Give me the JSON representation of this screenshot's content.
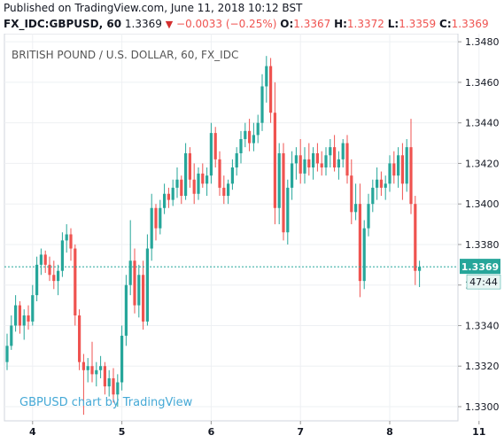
{
  "header": {
    "published": "Published on TradingView.com, June 11, 2018 10:12 BST",
    "symbol": "FX_IDC:GBPUSD, 60",
    "last": "1.3369",
    "change": "−0.0033 (−0.25%)",
    "open_label": "O:",
    "open": "1.3367",
    "high_label": "H:",
    "high": "1.3372",
    "low_label": "L:",
    "low": "1.3359",
    "close_label": "C:",
    "close": "1.3369"
  },
  "watermark": "GBPUSD chart by TradingView",
  "chart_data": {
    "type": "candlestick",
    "title": "BRITISH POUND / U.S. DOLLAR, 60, FX_IDC",
    "ylim": [
      1.3293,
      1.3484
    ],
    "y_ticks": [
      "1.3300",
      "1.3320",
      "1.3340",
      "1.3360",
      "1.3380",
      "1.3400",
      "1.3420",
      "1.3440",
      "1.3460",
      "1.3480"
    ],
    "x_ticks": [
      {
        "label": "4",
        "at": 6
      },
      {
        "label": "5",
        "at": 27
      },
      {
        "label": "6",
        "at": 48
      },
      {
        "label": "7",
        "at": 69
      },
      {
        "label": "8",
        "at": 90
      },
      {
        "label": "11",
        "at": 111
      }
    ],
    "last_price": "1.3369",
    "last_price_value": 1.3369,
    "countdown": "47:44",
    "colors": {
      "up": "#26a69a",
      "down": "#ef5350",
      "line": "#26a69a"
    },
    "candles": [
      [
        1.3322,
        1.3336,
        1.3318,
        1.333
      ],
      [
        1.333,
        1.3345,
        1.3328,
        1.334
      ],
      [
        1.334,
        1.3355,
        1.3337,
        1.335
      ],
      [
        1.335,
        1.3352,
        1.3336,
        1.334
      ],
      [
        1.334,
        1.3348,
        1.3333,
        1.3345
      ],
      [
        1.3345,
        1.335,
        1.3338,
        1.3342
      ],
      [
        1.3342,
        1.336,
        1.334,
        1.3355
      ],
      [
        1.3355,
        1.3374,
        1.3352,
        1.337
      ],
      [
        1.337,
        1.3378,
        1.3365,
        1.3375
      ],
      [
        1.3375,
        1.3377,
        1.3366,
        1.337
      ],
      [
        1.337,
        1.3374,
        1.3362,
        1.3365
      ],
      [
        1.3365,
        1.3372,
        1.3358,
        1.3362
      ],
      [
        1.3362,
        1.337,
        1.3355,
        1.3367
      ],
      [
        1.3367,
        1.3386,
        1.3364,
        1.3382
      ],
      [
        1.3382,
        1.339,
        1.3376,
        1.3385
      ],
      [
        1.3385,
        1.3388,
        1.3372,
        1.3378
      ],
      [
        1.3378,
        1.338,
        1.334,
        1.3345
      ],
      [
        1.3345,
        1.3348,
        1.3318,
        1.3322
      ],
      [
        1.3322,
        1.3326,
        1.3296,
        1.3318
      ],
      [
        1.3318,
        1.3324,
        1.3312,
        1.332
      ],
      [
        1.332,
        1.3332,
        1.3312,
        1.3316
      ],
      [
        1.3316,
        1.3322,
        1.331,
        1.3318
      ],
      [
        1.3318,
        1.3325,
        1.3314,
        1.332
      ],
      [
        1.332,
        1.3322,
        1.3306,
        1.331
      ],
      [
        1.331,
        1.3318,
        1.3305,
        1.3314
      ],
      [
        1.3314,
        1.3319,
        1.3302,
        1.3306
      ],
      [
        1.3306,
        1.3316,
        1.33,
        1.3312
      ],
      [
        1.3312,
        1.334,
        1.3308,
        1.3335
      ],
      [
        1.3335,
        1.3365,
        1.333,
        1.336
      ],
      [
        1.336,
        1.3392,
        1.3355,
        1.3372
      ],
      [
        1.3372,
        1.3378,
        1.3346,
        1.335
      ],
      [
        1.335,
        1.337,
        1.3344,
        1.3365
      ],
      [
        1.3365,
        1.3372,
        1.3338,
        1.3342
      ],
      [
        1.3342,
        1.3385,
        1.334,
        1.3378
      ],
      [
        1.3378,
        1.3405,
        1.3372,
        1.3398
      ],
      [
        1.3398,
        1.34,
        1.3382,
        1.3388
      ],
      [
        1.3388,
        1.3402,
        1.3385,
        1.3398
      ],
      [
        1.3398,
        1.341,
        1.3395,
        1.3405
      ],
      [
        1.3405,
        1.3408,
        1.3398,
        1.3402
      ],
      [
        1.3402,
        1.3412,
        1.3399,
        1.3408
      ],
      [
        1.3408,
        1.3418,
        1.3403,
        1.3412
      ],
      [
        1.3412,
        1.3414,
        1.34,
        1.3404
      ],
      [
        1.3404,
        1.343,
        1.3402,
        1.3425
      ],
      [
        1.3425,
        1.3428,
        1.3408,
        1.3412
      ],
      [
        1.3412,
        1.342,
        1.34,
        1.3405
      ],
      [
        1.3405,
        1.3418,
        1.3402,
        1.3415
      ],
      [
        1.3415,
        1.342,
        1.3408,
        1.341
      ],
      [
        1.341,
        1.3418,
        1.3404,
        1.3414
      ],
      [
        1.3414,
        1.344,
        1.341,
        1.3435
      ],
      [
        1.3435,
        1.3438,
        1.3418,
        1.3422
      ],
      [
        1.3422,
        1.3426,
        1.3404,
        1.3408
      ],
      [
        1.3408,
        1.3414,
        1.34,
        1.3404
      ],
      [
        1.3404,
        1.3412,
        1.34,
        1.341
      ],
      [
        1.341,
        1.3422,
        1.3407,
        1.3418
      ],
      [
        1.3418,
        1.3428,
        1.3414,
        1.3425
      ],
      [
        1.3425,
        1.3436,
        1.342,
        1.3432
      ],
      [
        1.3432,
        1.344,
        1.3428,
        1.3436
      ],
      [
        1.3436,
        1.3442,
        1.3426,
        1.343
      ],
      [
        1.343,
        1.344,
        1.3426,
        1.3434
      ],
      [
        1.3434,
        1.3444,
        1.343,
        1.344
      ],
      [
        1.344,
        1.3464,
        1.3436,
        1.3458
      ],
      [
        1.3458,
        1.3473,
        1.345,
        1.3468
      ],
      [
        1.3468,
        1.3472,
        1.344,
        1.3445
      ],
      [
        1.3445,
        1.346,
        1.339,
        1.3398
      ],
      [
        1.3398,
        1.343,
        1.339,
        1.3425
      ],
      [
        1.3425,
        1.343,
        1.3382,
        1.3386
      ],
      [
        1.3386,
        1.3412,
        1.338,
        1.3408
      ],
      [
        1.3408,
        1.3426,
        1.3402,
        1.342
      ],
      [
        1.342,
        1.3428,
        1.3412,
        1.3424
      ],
      [
        1.3424,
        1.3432,
        1.341,
        1.3415
      ],
      [
        1.3415,
        1.3428,
        1.341,
        1.3422
      ],
      [
        1.3422,
        1.343,
        1.3414,
        1.3418
      ],
      [
        1.3418,
        1.3428,
        1.3412,
        1.3425
      ],
      [
        1.3425,
        1.343,
        1.3416,
        1.342
      ],
      [
        1.342,
        1.3426,
        1.3414,
        1.3418
      ],
      [
        1.3418,
        1.3428,
        1.3414,
        1.3424
      ],
      [
        1.3424,
        1.3432,
        1.3418,
        1.3428
      ],
      [
        1.3428,
        1.3434,
        1.3416,
        1.3418
      ],
      [
        1.3418,
        1.3426,
        1.3412,
        1.3422
      ],
      [
        1.3422,
        1.3432,
        1.3418,
        1.343
      ],
      [
        1.343,
        1.3434,
        1.341,
        1.3414
      ],
      [
        1.3414,
        1.3422,
        1.339,
        1.3396
      ],
      [
        1.3396,
        1.341,
        1.3392,
        1.34
      ],
      [
        1.34,
        1.341,
        1.3354,
        1.3362
      ],
      [
        1.3362,
        1.3392,
        1.3358,
        1.3388
      ],
      [
        1.3388,
        1.3405,
        1.3384,
        1.34
      ],
      [
        1.34,
        1.3412,
        1.3396,
        1.3408
      ],
      [
        1.3408,
        1.3418,
        1.3402,
        1.3412
      ],
      [
        1.3412,
        1.3416,
        1.3404,
        1.3408
      ],
      [
        1.3408,
        1.3414,
        1.3402,
        1.341
      ],
      [
        1.341,
        1.3424,
        1.3406,
        1.342
      ],
      [
        1.342,
        1.3426,
        1.341,
        1.3414
      ],
      [
        1.3414,
        1.3428,
        1.3408,
        1.3424
      ],
      [
        1.3424,
        1.343,
        1.3402,
        1.341
      ],
      [
        1.341,
        1.3432,
        1.3406,
        1.3428
      ],
      [
        1.3428,
        1.3442,
        1.3395,
        1.34
      ],
      [
        1.34,
        1.3404,
        1.336,
        1.3367
      ],
      [
        1.3367,
        1.3372,
        1.3359,
        1.3369
      ]
    ]
  }
}
